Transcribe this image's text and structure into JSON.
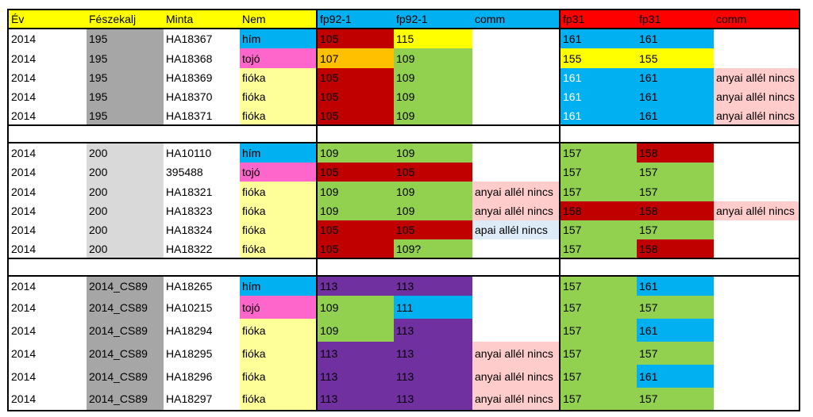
{
  "colors": {
    "header_yellow": "#ffff00",
    "header_blue": "#00b0f0",
    "header_red": "#ff0000",
    "nest_dark": "#a6a6a6",
    "nest_light": "#d9d9d9",
    "him": "#00b0f0",
    "tojo": "#ff66cc",
    "fioka": "#ffff99",
    "green": "#92d050",
    "red": "#c00000",
    "yellow": "#ffff00",
    "orange": "#ffc000",
    "blue": "#00b0f0",
    "purple": "#7030a0",
    "comment_pink": "#ffcccc",
    "comment_lightblue": "#ddebf7",
    "white": "#ffffff"
  },
  "headers": [
    "Év",
    "Fészekalj",
    "Minta",
    "Nem",
    "fp92-1",
    "fp92-1",
    "comm",
    "fp31",
    "fp31",
    "comm"
  ],
  "groups": [
    {
      "rows": [
        {
          "cells": [
            "2014",
            "195",
            "HA18367",
            "hím",
            "105",
            "115",
            "",
            "161",
            "161",
            ""
          ],
          "fills": [
            "white",
            "nest_dark",
            "white",
            "him",
            "red",
            "yellow",
            "white",
            "blue",
            "blue",
            "white"
          ],
          "white_text": []
        },
        {
          "cells": [
            "2014",
            "195",
            "HA18368",
            "tojó",
            "107",
            "109",
            "",
            "155",
            "155",
            ""
          ],
          "fills": [
            "white",
            "nest_dark",
            "white",
            "tojo",
            "orange",
            "green",
            "white",
            "yellow",
            "yellow",
            "white"
          ],
          "white_text": []
        },
        {
          "cells": [
            "2014",
            "195",
            "HA18369",
            "fióka",
            "105",
            "109",
            "",
            "161",
            "161",
            "anyai allél nincs"
          ],
          "fills": [
            "white",
            "nest_dark",
            "white",
            "fioka",
            "red",
            "green",
            "white",
            "blue",
            "blue",
            "comment_pink"
          ],
          "white_text": [
            7
          ]
        },
        {
          "cells": [
            "2014",
            "195",
            "HA18370",
            "fióka",
            "105",
            "109",
            "",
            "161",
            "161",
            "anyai allél nincs"
          ],
          "fills": [
            "white",
            "nest_dark",
            "white",
            "fioka",
            "red",
            "green",
            "white",
            "blue",
            "blue",
            "comment_pink"
          ],
          "white_text": [
            7
          ]
        },
        {
          "cells": [
            "2014",
            "195",
            "HA18371",
            "fióka",
            "105",
            "109",
            "",
            "161",
            "161",
            "anyai allél nincs"
          ],
          "fills": [
            "white",
            "nest_dark",
            "white",
            "fioka",
            "red",
            "green",
            "white",
            "blue",
            "blue",
            "comment_pink"
          ],
          "white_text": [
            7
          ]
        }
      ]
    },
    {
      "rows": [
        {
          "cells": [
            "2014",
            "200",
            "HA10110",
            "hím",
            "109",
            "109",
            "",
            "157",
            "158",
            ""
          ],
          "fills": [
            "white",
            "nest_light",
            "white",
            "him",
            "green",
            "green",
            "white",
            "green",
            "red",
            "white"
          ],
          "white_text": []
        },
        {
          "cells": [
            "2014",
            "200",
            "395488",
            "tojó",
            "105",
            "105",
            "",
            "157",
            "157",
            ""
          ],
          "fills": [
            "white",
            "nest_light",
            "white",
            "tojo",
            "red",
            "red",
            "white",
            "green",
            "green",
            "white"
          ],
          "white_text": []
        },
        {
          "cells": [
            "2014",
            "200",
            "HA18321",
            "fióka",
            "109",
            "109",
            "anyai allél nincs",
            "157",
            "157",
            ""
          ],
          "fills": [
            "white",
            "nest_light",
            "white",
            "fioka",
            "green",
            "green",
            "comment_pink",
            "green",
            "green",
            "white"
          ],
          "white_text": []
        },
        {
          "cells": [
            "2014",
            "200",
            "HA18323",
            "fióka",
            "109",
            "109",
            "anyai allél nincs",
            "158",
            "158",
            "anyai allél nincs"
          ],
          "fills": [
            "white",
            "nest_light",
            "white",
            "fioka",
            "green",
            "green",
            "comment_pink",
            "red",
            "red",
            "comment_pink"
          ],
          "white_text": []
        },
        {
          "cells": [
            "2014",
            "200",
            "HA18324",
            "fióka",
            "105",
            "105",
            "apai allél nincs",
            "157",
            "157",
            ""
          ],
          "fills": [
            "white",
            "nest_light",
            "white",
            "fioka",
            "red",
            "red",
            "comment_lightblue",
            "green",
            "green",
            "white"
          ],
          "white_text": []
        },
        {
          "cells": [
            "2014",
            "200",
            "HA18322",
            "fióka",
            "105",
            "109?",
            "",
            "157",
            "158",
            ""
          ],
          "fills": [
            "white",
            "nest_light",
            "white",
            "fioka",
            "red",
            "green",
            "white",
            "green",
            "red",
            "white"
          ],
          "white_text": []
        }
      ]
    },
    {
      "rows": [
        {
          "cells": [
            "2014",
            "2014_CS89",
            "HA18265",
            "hím",
            "113",
            "113",
            "",
            "157",
            "161",
            ""
          ],
          "fills": [
            "white",
            "nest_dark",
            "white",
            "him",
            "purple",
            "purple",
            "white",
            "green",
            "blue",
            "white"
          ],
          "white_text": []
        },
        {
          "cells": [
            "2014",
            "2014_CS89",
            "HA10215",
            "tojó",
            "109",
            "111",
            "",
            "157",
            "157",
            ""
          ],
          "fills": [
            "white",
            "nest_dark",
            "white",
            "tojo",
            "green",
            "blue",
            "white",
            "green",
            "green",
            "white"
          ],
          "white_text": []
        },
        {
          "cells": [
            "2014",
            "2014_CS89",
            "HA18294",
            "fióka",
            "109",
            "113",
            "",
            "157",
            "161",
            ""
          ],
          "fills": [
            "white",
            "nest_dark",
            "white",
            "fioka",
            "green",
            "purple",
            "white",
            "green",
            "blue",
            "white"
          ],
          "white_text": []
        },
        {
          "cells": [
            "2014",
            "2014_CS89",
            "HA18295",
            "fióka",
            "113",
            "113",
            "anyai allél nincs",
            "157",
            "157",
            ""
          ],
          "fills": [
            "white",
            "nest_dark",
            "white",
            "fioka",
            "purple",
            "purple",
            "comment_pink",
            "green",
            "green",
            "white"
          ],
          "white_text": []
        },
        {
          "cells": [
            "2014",
            "2014_CS89",
            "HA18296",
            "fióka",
            "113",
            "113",
            "anyai allél nincs",
            "157",
            "161",
            ""
          ],
          "fills": [
            "white",
            "nest_dark",
            "white",
            "fioka",
            "purple",
            "purple",
            "comment_pink",
            "green",
            "blue",
            "white"
          ],
          "white_text": []
        },
        {
          "cells": [
            "2014",
            "2014_CS89",
            "HA18297",
            "fióka",
            "113",
            "113",
            "anyai allél nincs",
            "157",
            "157",
            ""
          ],
          "fills": [
            "white",
            "nest_dark",
            "white",
            "fioka",
            "purple",
            "purple",
            "comment_pink",
            "green",
            "green",
            "white"
          ],
          "white_text": []
        }
      ]
    }
  ]
}
